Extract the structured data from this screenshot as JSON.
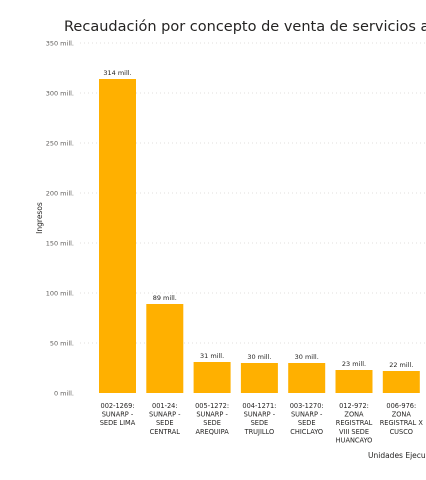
{
  "chart_data": {
    "type": "bar",
    "title": "Recaudación por concepto de venta de servicios a nivel",
    "xlabel": "Unidades Ejecu",
    "ylabel": "Ingresos",
    "ylim": [
      0,
      350
    ],
    "yticks": [
      0,
      50,
      100,
      150,
      200,
      250,
      300,
      350
    ],
    "ytick_labels": [
      "0 mill.",
      "50 mill.",
      "100 mill.",
      "150 mill.",
      "200 mill.",
      "250 mill.",
      "300 mill.",
      "350 mill."
    ],
    "grid": true,
    "categories": [
      [
        "002-1269:",
        "SUNARP -",
        "SEDE LIMA"
      ],
      [
        "001-24:",
        "SUNARP -",
        "SEDE",
        "CENTRAL"
      ],
      [
        "005-1272:",
        "SUNARP -",
        "SEDE",
        "AREQUIPA"
      ],
      [
        "004-1271:",
        "SUNARP -",
        "SEDE",
        "TRUJILLO"
      ],
      [
        "003-1270:",
        "SUNARP -",
        "SEDE",
        "CHICLAYO"
      ],
      [
        "012-972:",
        "ZONA",
        "REGISTRAL",
        "VIII SEDE",
        "HUANCAYO"
      ],
      [
        "006-976:",
        "ZONA",
        "REGISTRAL X",
        "CUSCO"
      ]
    ],
    "values": [
      314,
      89,
      31,
      30,
      30,
      23,
      22
    ],
    "data_labels": [
      "314 mill.",
      "89 mill.",
      "31 mill.",
      "30 mill.",
      "30 mill.",
      "23 mill.",
      "22 mill."
    ],
    "color": "#FFB000"
  }
}
